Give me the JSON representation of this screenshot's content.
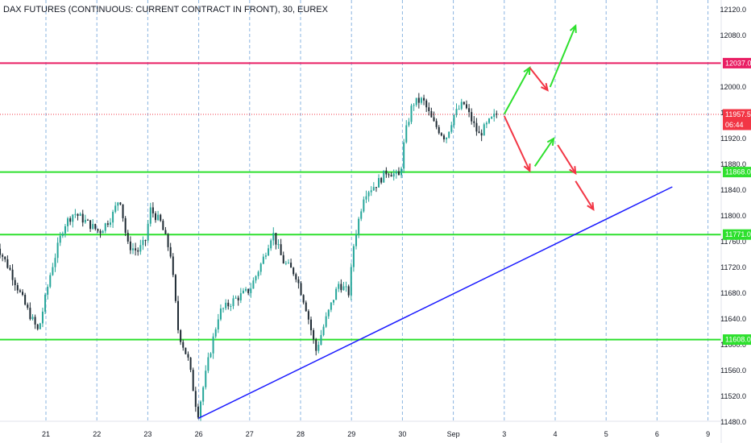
{
  "title": "DAX FUTURES (CONTINUOUS: CURRENT CONTRACT IN FRONT), 30, EUREX",
  "colors": {
    "up_candle": "#26a69a",
    "down_candle": "#1e2a33",
    "resistance_line": "#e91e63",
    "support_line": "#2ee02e",
    "trend_line": "#1a1aff",
    "current_price_tag": "#f23645",
    "grid_dash": "#8ab4e0",
    "up_arrow": "#2ee02e",
    "down_arrow": "#f23645"
  },
  "chart_data": {
    "type": "candlestick",
    "x_tick_labels": [
      "21",
      "22",
      "23",
      "26",
      "27",
      "28",
      "29",
      "30",
      "Sep",
      "3",
      "4",
      "5",
      "6",
      "9"
    ],
    "y_tick_labels": [
      "12120.0",
      "12080.0",
      "12000.0",
      "11960.0",
      "11920.0",
      "11880.0",
      "11840.0",
      "11800.0",
      "11760.0",
      "11720.0",
      "11680.0",
      "11640.0",
      "11600.0",
      "11560.0",
      "11520.0",
      "11480.0"
    ],
    "ylim": [
      11475,
      12135
    ],
    "grid": "vertical dashed lines at x ticks",
    "horizontal_levels": [
      {
        "value": 12037.0,
        "label": "12037.0",
        "color": "#e91e63"
      },
      {
        "value": 11868.0,
        "label": "11868.0",
        "color": "#2ee02e"
      },
      {
        "value": 11771.0,
        "label": "11771.0",
        "color": "#2ee02e"
      },
      {
        "value": 11608.0,
        "label": "11608.0",
        "color": "#2ee02e"
      }
    ],
    "current_price": {
      "value": 11957.5,
      "label": "11957.5",
      "countdown": "06:44"
    },
    "trend_line": {
      "from": {
        "x": 26.0,
        "y": 11486
      },
      "to": {
        "x": 9.3,
        "y": 11845
      }
    },
    "price_path": [
      {
        "x": 0.0,
        "y": 11760
      },
      {
        "x": 0.3,
        "y": 11715
      },
      {
        "x": 0.6,
        "y": 11660
      },
      {
        "x": 0.85,
        "y": 11620
      },
      {
        "x": 1.1,
        "y": 11715
      },
      {
        "x": 1.35,
        "y": 11785
      },
      {
        "x": 1.55,
        "y": 11805
      },
      {
        "x": 1.8,
        "y": 11790
      },
      {
        "x": 2.05,
        "y": 11775
      },
      {
        "x": 2.3,
        "y": 11800
      },
      {
        "x": 2.45,
        "y": 11830
      },
      {
        "x": 2.6,
        "y": 11755
      },
      {
        "x": 2.8,
        "y": 11745
      },
      {
        "x": 2.95,
        "y": 11760
      },
      {
        "x": 3.05,
        "y": 11810
      },
      {
        "x": 3.25,
        "y": 11790
      },
      {
        "x": 3.45,
        "y": 11740
      },
      {
        "x": 3.6,
        "y": 11620
      },
      {
        "x": 3.8,
        "y": 11575
      },
      {
        "x": 3.98,
        "y": 11490
      },
      {
        "x": 4.2,
        "y": 11580
      },
      {
        "x": 4.4,
        "y": 11650
      },
      {
        "x": 4.7,
        "y": 11670
      },
      {
        "x": 5.0,
        "y": 11685
      },
      {
        "x": 5.25,
        "y": 11730
      },
      {
        "x": 5.45,
        "y": 11775
      },
      {
        "x": 5.65,
        "y": 11730
      },
      {
        "x": 5.9,
        "y": 11710
      },
      {
        "x": 6.1,
        "y": 11660
      },
      {
        "x": 6.3,
        "y": 11590
      },
      {
        "x": 6.5,
        "y": 11640
      },
      {
        "x": 6.75,
        "y": 11695
      },
      {
        "x": 6.95,
        "y": 11680
      },
      {
        "x": 7.05,
        "y": 11760
      },
      {
        "x": 7.25,
        "y": 11835
      },
      {
        "x": 7.5,
        "y": 11850
      },
      {
        "x": 7.7,
        "y": 11870
      },
      {
        "x": 7.95,
        "y": 11860
      },
      {
        "x": 8.05,
        "y": 11925
      },
      {
        "x": 8.2,
        "y": 11975
      },
      {
        "x": 8.4,
        "y": 11980
      },
      {
        "x": 8.6,
        "y": 11945
      },
      {
        "x": 8.85,
        "y": 11920
      },
      {
        "x": 9.0,
        "y": 11955
      },
      {
        "x": 9.2,
        "y": 11975
      },
      {
        "x": 9.35,
        "y": 11950
      },
      {
        "x": 9.5,
        "y": 11925
      },
      {
        "x": 9.7,
        "y": 11945
      },
      {
        "x": 9.85,
        "y": 11958
      }
    ],
    "scenario_arrows": [
      {
        "color": "#2ee02e",
        "from": {
          "x": 3.0,
          "y": 11958
        },
        "to": {
          "x": 3.5,
          "y": 12030
        }
      },
      {
        "color": "#f23645",
        "from": {
          "x": 3.5,
          "y": 12030
        },
        "to": {
          "x": 3.85,
          "y": 11995
        }
      },
      {
        "color": "#2ee02e",
        "from": {
          "x": 3.9,
          "y": 12000
        },
        "to": {
          "x": 4.4,
          "y": 12095
        }
      },
      {
        "color": "#f23645",
        "from": {
          "x": 3.0,
          "y": 11955
        },
        "to": {
          "x": 3.5,
          "y": 11870
        }
      },
      {
        "color": "#2ee02e",
        "from": {
          "x": 3.6,
          "y": 11877
        },
        "to": {
          "x": 3.97,
          "y": 11920
        }
      },
      {
        "color": "#f23645",
        "from": {
          "x": 4.05,
          "y": 11910
        },
        "to": {
          "x": 4.4,
          "y": 11866
        }
      },
      {
        "color": "#f23645",
        "from": {
          "x": 4.4,
          "y": 11854
        },
        "to": {
          "x": 4.75,
          "y": 11810
        }
      }
    ]
  }
}
